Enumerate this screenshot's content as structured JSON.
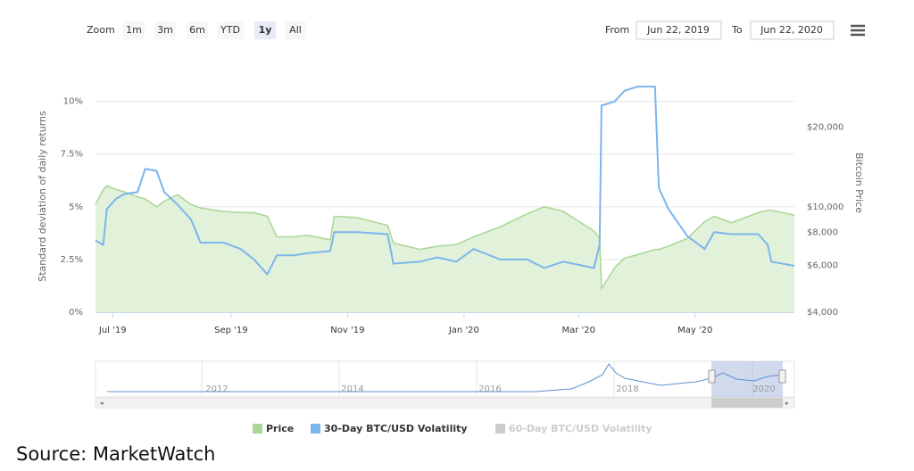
{
  "toolbar": {
    "zoom_label": "Zoom",
    "buttons": [
      "1m",
      "3m",
      "6m",
      "YTD",
      "1y",
      "All"
    ],
    "selected": 4,
    "from_label": "From",
    "from": "Jun 22, 2019",
    "to_label": "To",
    "to": "Jun 22, 2020"
  },
  "chart_data": {
    "type": "line",
    "ylabel": "Standard deviation of daily returns",
    "y2label": "Bitcoin Price",
    "x": [
      "2019-06-22",
      "2019-06-26",
      "2019-06-28",
      "2019-07-03",
      "2019-07-07",
      "2019-07-14",
      "2019-07-18",
      "2019-07-24",
      "2019-07-28",
      "2019-08-04",
      "2019-08-11",
      "2019-08-16",
      "2019-08-28",
      "2019-09-06",
      "2019-09-13",
      "2019-09-20",
      "2019-09-25",
      "2019-10-04",
      "2019-10-11",
      "2019-10-23",
      "2019-10-25",
      "2019-11-06",
      "2019-11-22",
      "2019-11-25",
      "2019-12-09",
      "2019-12-18",
      "2019-12-28",
      "2020-01-06",
      "2020-01-20",
      "2020-02-03",
      "2020-02-12",
      "2020-02-22",
      "2020-03-09",
      "2020-03-12",
      "2020-03-13",
      "2020-03-20",
      "2020-03-25",
      "2020-04-01",
      "2020-04-10",
      "2020-04-12",
      "2020-04-17",
      "2020-04-27",
      "2020-05-06",
      "2020-05-11",
      "2020-05-20",
      "2020-06-03",
      "2020-06-08",
      "2020-06-10",
      "2020-06-22"
    ],
    "xlim": [
      "2019-06-22",
      "2020-06-22"
    ],
    "xticks": [
      {
        "value": "2019-07-01",
        "label": "Jul '19"
      },
      {
        "value": "2019-09-01",
        "label": "Sep '19"
      },
      {
        "value": "2019-11-01",
        "label": "Nov '19"
      },
      {
        "value": "2020-01-01",
        "label": "Jan '20"
      },
      {
        "value": "2020-03-01",
        "label": "Mar '20"
      },
      {
        "value": "2020-05-01",
        "label": "May '20"
      }
    ],
    "ylim": [
      0,
      11
    ],
    "yticks": [
      {
        "value": 0,
        "label": "0%"
      },
      {
        "value": 2.5,
        "label": "2.5%"
      },
      {
        "value": 5,
        "label": "5%"
      },
      {
        "value": 7.5,
        "label": "7.5%"
      },
      {
        "value": 10,
        "label": "10%"
      }
    ],
    "y2lim": [
      4000,
      30000
    ],
    "y2scale": "log",
    "y2ticks": [
      {
        "value": 4000,
        "label": "$4,000"
      },
      {
        "value": 6000,
        "label": "$6,000"
      },
      {
        "value": 8000,
        "label": "$8,000"
      },
      {
        "value": 10000,
        "label": "$10,000"
      },
      {
        "value": 20000,
        "label": "$20,000"
      }
    ],
    "grid": true,
    "series": [
      {
        "name": "Price",
        "type": "area",
        "axis": "y2",
        "color": "#a9d696",
        "fill": "#e2f2da",
        "values": [
          10200,
          11600,
          12000,
          11600,
          11400,
          10900,
          10700,
          10000,
          10500,
          11100,
          10200,
          9900,
          9600,
          9500,
          9500,
          9200,
          7700,
          7700,
          7800,
          7500,
          9200,
          9100,
          8500,
          7300,
          6900,
          7100,
          7200,
          7700,
          8400,
          9400,
          10000,
          9600,
          8100,
          7600,
          4900,
          5900,
          6400,
          6600,
          6900,
          6900,
          7100,
          7600,
          8800,
          9200,
          8700,
          9500,
          9700,
          9700,
          9300
        ]
      },
      {
        "name": "30-Day BTC/USD Volatility",
        "type": "line",
        "color": "#7cb5ec",
        "values": [
          3.4,
          3.2,
          4.9,
          5.4,
          5.6,
          5.7,
          6.8,
          6.7,
          5.7,
          5.1,
          4.4,
          3.3,
          3.3,
          3.0,
          2.5,
          1.8,
          2.7,
          2.7,
          2.8,
          2.9,
          3.8,
          3.8,
          3.7,
          2.3,
          2.4,
          2.6,
          2.4,
          3.0,
          2.5,
          2.5,
          2.1,
          2.4,
          2.1,
          3.2,
          9.8,
          10.0,
          10.5,
          10.7,
          10.7,
          5.9,
          4.9,
          3.6,
          3.0,
          3.8,
          3.7,
          3.7,
          3.2,
          2.4,
          2.2
        ]
      }
    ],
    "hidden_series": [
      {
        "name": "60-Day BTC/USD Volatility",
        "color": "#cccccc"
      }
    ]
  },
  "navigator": {
    "labels": [
      "2012",
      "2014",
      "2016",
      "2018",
      "2020"
    ]
  },
  "source": "Source: MarketWatch"
}
